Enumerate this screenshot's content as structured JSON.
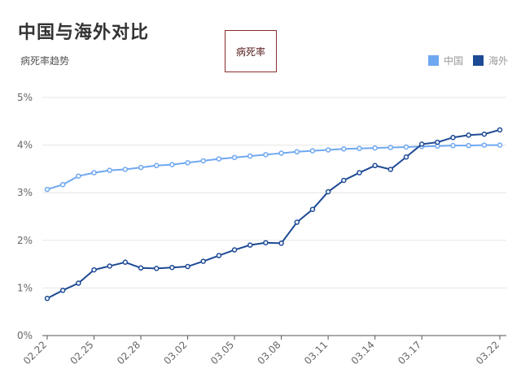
{
  "header": {
    "title": "中国与海外对比",
    "subtitle": "病死率趋势",
    "button_label": "病死率"
  },
  "chart_data": {
    "type": "line",
    "title": "中国与海外对比",
    "subtitle": "病死率趋势",
    "categories": [
      "02.22",
      "02.23",
      "02.24",
      "02.25",
      "02.26",
      "02.27",
      "02.28",
      "02.29",
      "03.01",
      "03.02",
      "03.03",
      "03.04",
      "03.05",
      "03.06",
      "03.07",
      "03.08",
      "03.09",
      "03.10",
      "03.11",
      "03.12",
      "03.13",
      "03.14",
      "03.15",
      "03.16",
      "03.17",
      "03.18",
      "03.19",
      "03.20",
      "03.21",
      "03.22"
    ],
    "tick_labels": [
      "02.22",
      "02.25",
      "02.28",
      "03.02",
      "03.05",
      "03.08",
      "03.11",
      "03.14",
      "03.17",
      "03.22"
    ],
    "tick_indices": [
      0,
      3,
      6,
      9,
      12,
      15,
      18,
      21,
      24,
      29
    ],
    "y_ticks": [
      "0%",
      "1%",
      "2%",
      "3%",
      "4%",
      "5%"
    ],
    "ylim": [
      0,
      5
    ],
    "grid": true,
    "legend_position": "top-right",
    "series": [
      {
        "name": "中国",
        "color": "#6fa8f0",
        "values": [
          3.07,
          3.17,
          3.35,
          3.42,
          3.47,
          3.49,
          3.53,
          3.57,
          3.59,
          3.63,
          3.67,
          3.71,
          3.74,
          3.77,
          3.8,
          3.83,
          3.86,
          3.88,
          3.9,
          3.92,
          3.93,
          3.94,
          3.95,
          3.96,
          3.97,
          3.98,
          3.99,
          3.99,
          4.0,
          4.0
        ]
      },
      {
        "name": "海外",
        "color": "#1d4a94",
        "values": [
          0.78,
          0.95,
          1.1,
          1.38,
          1.46,
          1.54,
          1.42,
          1.41,
          1.43,
          1.45,
          1.56,
          1.68,
          1.8,
          1.9,
          1.95,
          1.94,
          2.38,
          2.65,
          3.02,
          3.26,
          3.42,
          3.57,
          3.49,
          3.75,
          4.02,
          4.06,
          4.16,
          4.21,
          4.23,
          4.32
        ]
      }
    ]
  }
}
